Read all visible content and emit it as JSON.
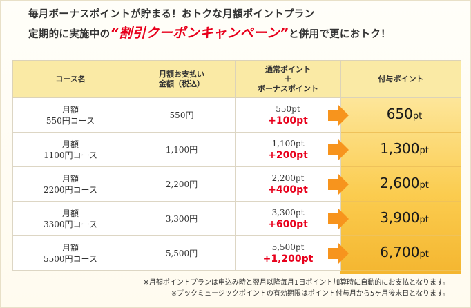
{
  "header": {
    "line1": "毎月ボーナスポイントが貯まる！おトクな月額ポイントプラン",
    "line2_prefix": "定期的に実施中の",
    "line2_campaign": "“割引クーポンキャンペーン”",
    "line2_suffix": "と併用で更におトク！"
  },
  "table": {
    "headers": {
      "course": "コース名",
      "payment_line1": "月額お支払い",
      "payment_line2": "金額（税込）",
      "points_line1": "通常ポイント",
      "points_line2": "＋",
      "points_line3": "ボーナスポイント",
      "total": "付与ポイント"
    },
    "rows": [
      {
        "course_line1": "月額",
        "course_line2": "550円コース",
        "price": "550円",
        "base": "550pt",
        "bonus": "+100pt",
        "total": "650",
        "unit": "pt"
      },
      {
        "course_line1": "月額",
        "course_line2": "1100円コース",
        "price": "1,100円",
        "base": "1,100pt",
        "bonus": "+200pt",
        "total": "1,300",
        "unit": "pt"
      },
      {
        "course_line1": "月額",
        "course_line2": "2200円コース",
        "price": "2,200円",
        "base": "2,200pt",
        "bonus": "+400pt",
        "total": "2,600",
        "unit": "pt"
      },
      {
        "course_line1": "月額",
        "course_line2": "3300円コース",
        "price": "3,300円",
        "base": "3,300pt",
        "bonus": "+600pt",
        "total": "3,900",
        "unit": "pt"
      },
      {
        "course_line1": "月額",
        "course_line2": "5500円コース",
        "price": "5,500円",
        "base": "5,500pt",
        "bonus": "+1,200pt",
        "total": "6,700",
        "unit": "pt"
      }
    ]
  },
  "notes": {
    "note1": "※月額ポイントプランは申込み時と翌月以降毎月1日ポイント加算時に自動的にお支払となります。",
    "note2": "※ブックミュージックポイントの有効期限はポイント付与月から5ヶ月後末日となります。"
  },
  "colors": {
    "accent_red": "#e8001c",
    "header_bg": "#faeaa5",
    "total_bg": "#fbd26a",
    "arrow": "#f7941d"
  }
}
